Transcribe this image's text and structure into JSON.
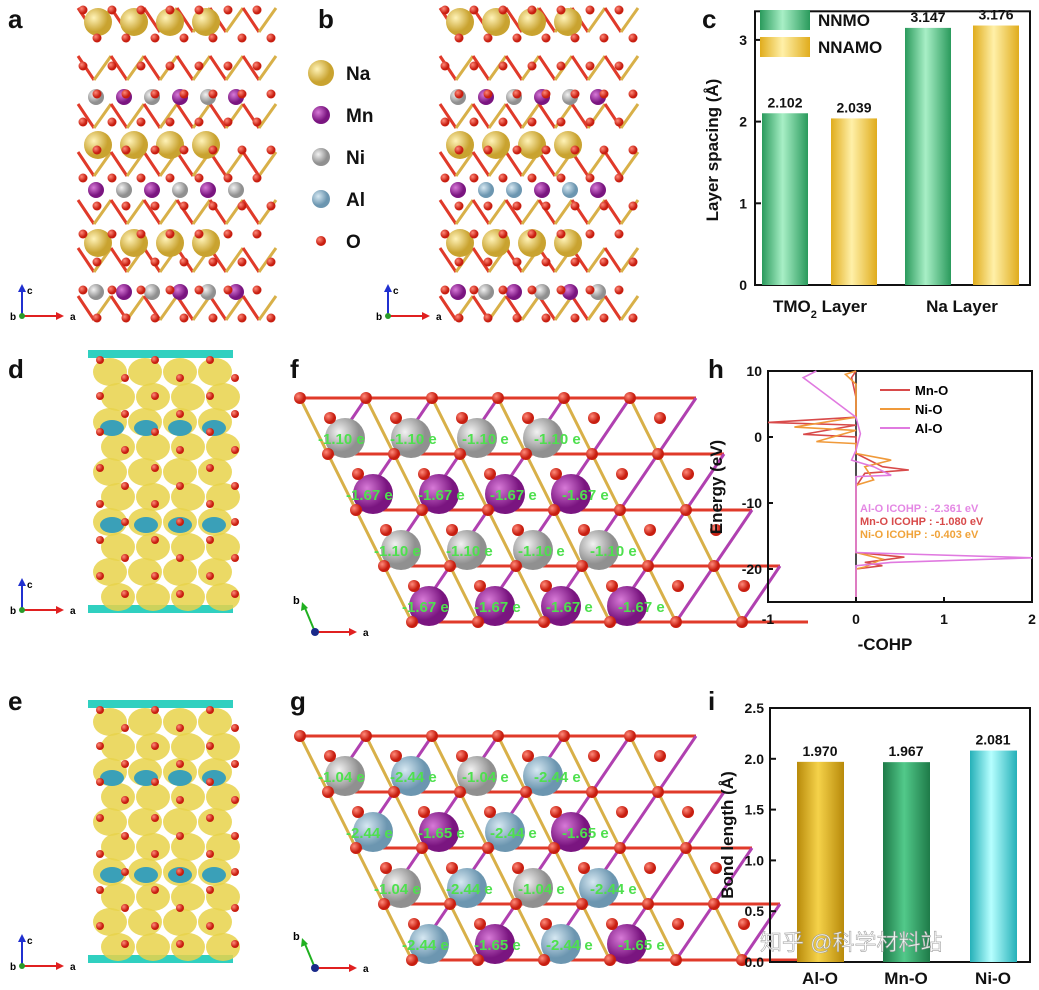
{
  "panels": {
    "a": "a",
    "b": "b",
    "c": "c",
    "d": "d",
    "e": "e",
    "f": "f",
    "g": "g",
    "h": "h",
    "i": "i"
  },
  "legend_elements": [
    {
      "label": "Na",
      "color": "#e2c35a"
    },
    {
      "label": "Mn",
      "color": "#9b2b9b"
    },
    {
      "label": "Ni",
      "color": "#b8b8b8"
    },
    {
      "label": "Al",
      "color": "#8fb4cc"
    },
    {
      "label": "O",
      "color": "#e03a2a"
    }
  ],
  "axes_labels": {
    "c": "c",
    "b": "b",
    "a": "a"
  },
  "charges_f": [
    [
      "-1.10 e",
      "-1.10 e",
      "-1.10 e",
      "-1.10 e"
    ],
    [
      "-1.67 e",
      "-1.67 e",
      "-1.67 e",
      "-1.67 e"
    ],
    [
      "-1.10 e",
      "-1.10 e",
      "-1.10 e",
      "-1.10 e"
    ],
    [
      "-1.67 e",
      "-1.67 e",
      "-1.67 e",
      "-1.67 e"
    ]
  ],
  "charges_g": [
    [
      "-1.04 e",
      "-2.44 e",
      "-1.04 e",
      "-2.44 e"
    ],
    [
      "-2.44 e",
      "-1.65 e",
      "-2.44 e",
      "-1.65 e"
    ],
    [
      "-1.04 e",
      "-2.44 e",
      "-1.04 e",
      "-2.44 e"
    ],
    [
      "-2.44 e",
      "-1.65 e",
      "-2.44 e",
      "-1.65 e"
    ]
  ],
  "watermark": "知乎 @科学材料站",
  "chart_data": [
    {
      "panel": "c",
      "type": "bar",
      "categories": [
        "TMO2 Layer",
        "Na Layer"
      ],
      "category_labels": {
        "tmo_main": "TMO",
        "tmo_sub": "2",
        "tmo_rest": " Layer",
        "na": "Na Layer"
      },
      "series": [
        {
          "name": "NNMO",
          "values": [
            2.102,
            3.147
          ],
          "color": "#3dbb7a"
        },
        {
          "name": "NNAMO",
          "values": [
            2.039,
            3.176
          ],
          "color": "#f2c63c"
        }
      ],
      "data_labels": [
        [
          "2.102",
          "3.147"
        ],
        [
          "2.039",
          "3.176"
        ]
      ],
      "ylabel": "Layer spacing (Å)",
      "ylim": [
        0,
        3.35
      ],
      "yticks": [
        "0",
        "1",
        "2",
        "3"
      ],
      "legend": "top-left"
    },
    {
      "panel": "h",
      "type": "line",
      "xlabel": "-COHP",
      "ylabel": "Energy (eV)",
      "xlim": [
        -1,
        2
      ],
      "ylim": [
        -25,
        10
      ],
      "xticks": [
        "-1",
        "0",
        "1",
        "2"
      ],
      "yticks": [
        "10",
        "0",
        "-10",
        "-20"
      ],
      "legend": "top-right",
      "series": [
        {
          "name": "Mn-O",
          "color": "#d84a4a",
          "points": [
            [
              0,
              10
            ],
            [
              -0.05,
              9
            ],
            [
              0,
              6
            ],
            [
              0,
              3
            ],
            [
              -1,
              2.2
            ],
            [
              0,
              1.8
            ],
            [
              -0.6,
              0.4
            ],
            [
              0,
              0
            ],
            [
              0,
              -2.5
            ],
            [
              0.3,
              -4.5
            ],
            [
              0.6,
              -5
            ],
            [
              0.1,
              -5.5
            ],
            [
              0,
              -7.5
            ],
            [
              0,
              -17.5
            ],
            [
              0.55,
              -18.2
            ],
            [
              0.1,
              -19
            ],
            [
              0.3,
              -19.5
            ],
            [
              0,
              -20
            ],
            [
              0,
              -25
            ]
          ]
        },
        {
          "name": "Ni-O",
          "color": "#f09a3a",
          "points": [
            [
              0,
              10
            ],
            [
              -0.12,
              9.5
            ],
            [
              0,
              8
            ],
            [
              0,
              3
            ],
            [
              -0.7,
              1.5
            ],
            [
              0,
              1
            ],
            [
              -0.45,
              -0.7
            ],
            [
              0,
              -1
            ],
            [
              0,
              -2.5
            ],
            [
              0.4,
              -3.5
            ],
            [
              0.1,
              -4.5
            ],
            [
              0.2,
              -6.5
            ],
            [
              0,
              -7.3
            ],
            [
              0,
              -17.5
            ],
            [
              0.3,
              -18.5
            ],
            [
              0.1,
              -19.7
            ],
            [
              0,
              -20
            ],
            [
              0,
              -25
            ]
          ]
        },
        {
          "name": "Al-O",
          "color": "#e07ae0",
          "points": [
            [
              -0.45,
              10
            ],
            [
              -0.6,
              9
            ],
            [
              -0.45,
              7.5
            ],
            [
              -0.1,
              4
            ],
            [
              0,
              3
            ],
            [
              0.05,
              0.5
            ],
            [
              0,
              -2
            ],
            [
              -0.05,
              -3.5
            ],
            [
              0.2,
              -4.5
            ],
            [
              0.4,
              -5.8
            ],
            [
              0,
              -6
            ],
            [
              0,
              -17.5
            ],
            [
              2,
              -18.3
            ],
            [
              0.4,
              -19
            ],
            [
              0,
              -19.5
            ],
            [
              0,
              -25
            ]
          ]
        }
      ],
      "annotations": [
        {
          "text": "Al-O ICOHP : -2.361 eV",
          "color": "#e488e4"
        },
        {
          "text": "Mn-O ICOHP : -1.080 eV",
          "color": "#d84a4a"
        },
        {
          "text": "Ni-O ICOHP : -0.403 eV",
          "color": "#f0a33a"
        }
      ]
    },
    {
      "panel": "i",
      "type": "bar",
      "categories": [
        "Al-O",
        "Mn-O",
        "Ni-O"
      ],
      "values": [
        1.97,
        1.967,
        2.081
      ],
      "data_labels": [
        "1.970",
        "1.967",
        "2.081"
      ],
      "colors": [
        "#d9ae1c",
        "#2e9e64",
        "#4fd6d6"
      ],
      "ylabel": "Bond length (Å)",
      "ylim": [
        0,
        2.5
      ],
      "yticks": [
        "0.0",
        "0.5",
        "1.0",
        "1.5",
        "2.0",
        "2.5"
      ]
    }
  ]
}
